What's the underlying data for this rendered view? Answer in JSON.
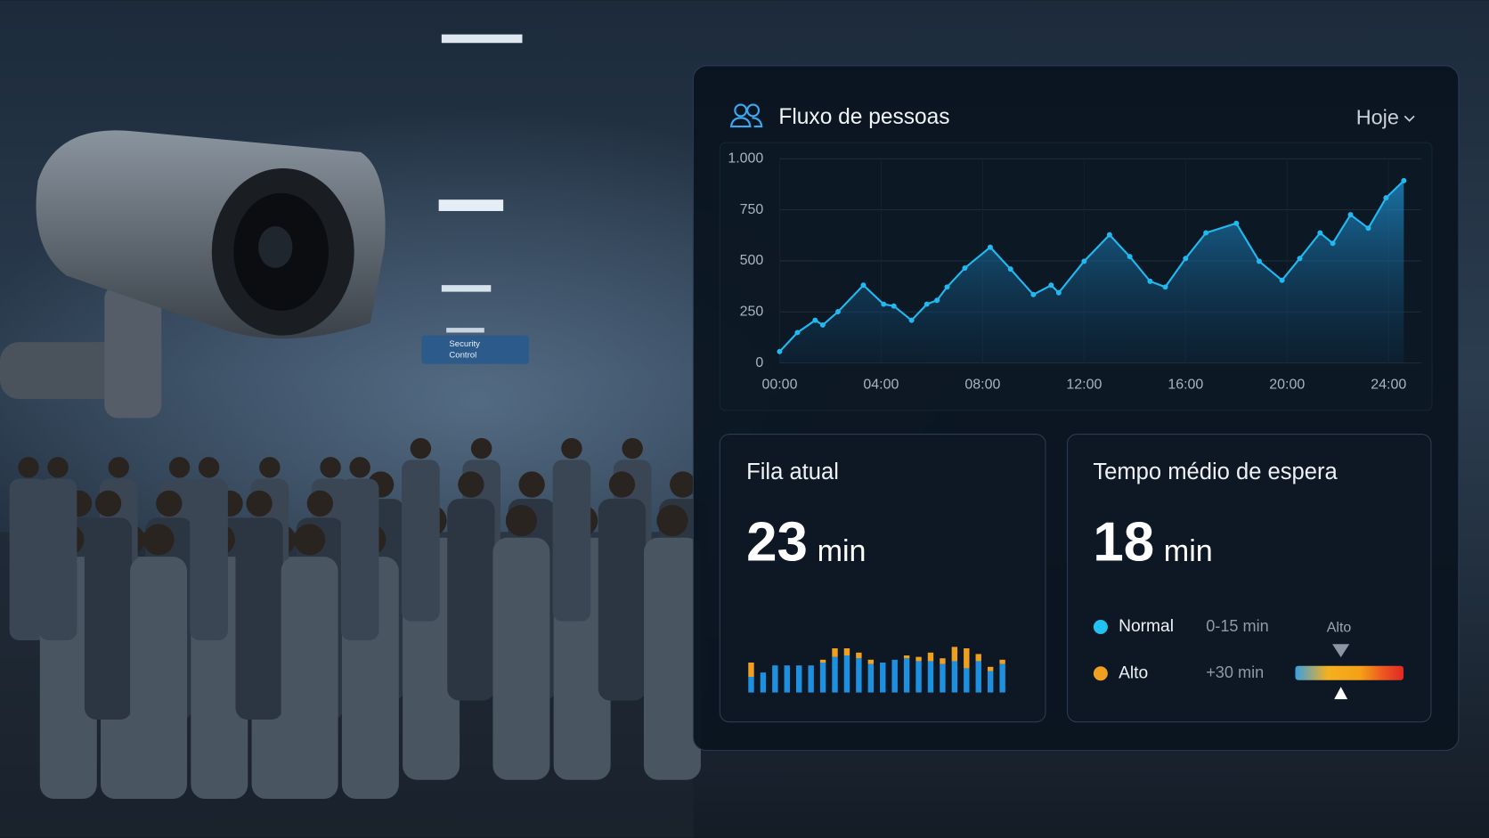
{
  "scene": {
    "sign": [
      "Security",
      "Control"
    ]
  },
  "header": {
    "title": "Fluxo de pessoas",
    "period": "Hoje"
  },
  "chart_data": {
    "type": "area",
    "x": [
      0,
      0.7,
      1.4,
      1.7,
      2.3,
      3.3,
      4.1,
      4.5,
      5.2,
      5.8,
      6.2,
      6.6,
      7.3,
      8.3,
      9.1,
      10.0,
      10.7,
      11.0,
      12.0,
      13.0,
      13.8,
      14.6,
      15.2,
      16.0,
      16.8,
      18.0,
      18.9,
      19.8,
      20.5,
      21.3,
      21.8,
      22.5,
      23.2,
      23.9,
      24.6
    ],
    "values": [
      56,
      149,
      209,
      186,
      251,
      381,
      288,
      279,
      209,
      288,
      307,
      372,
      465,
      567,
      460,
      335,
      381,
      344,
      498,
      628,
      521,
      400,
      372,
      512,
      637,
      684,
      498,
      405,
      512,
      637,
      586,
      726,
      660,
      809,
      893
    ],
    "color": "#22b8f0",
    "xlim": [
      0,
      25.3
    ],
    "ylim": [
      0,
      1000
    ],
    "xticks": [
      {
        "value": 0,
        "label": "00:00"
      },
      {
        "value": 4,
        "label": "04:00"
      },
      {
        "value": 8,
        "label": "08:00"
      },
      {
        "value": 12,
        "label": "12:00"
      },
      {
        "value": 16,
        "label": "16:00"
      },
      {
        "value": 20,
        "label": "20:00"
      },
      {
        "value": 24,
        "label": "24:00"
      }
    ],
    "yticks": [
      0,
      250,
      500,
      750,
      {
        "value": 1000,
        "label": "1.000"
      }
    ],
    "grid": true
  },
  "cards": [
    {
      "title": "Fila atual",
      "value": 23,
      "unit": "min",
      "bars": {
        "series": [
          {
            "color": "#1e90e0",
            "values": [
              22,
              28,
              38,
              38,
              38,
              38,
              42,
              50,
              52,
              48,
              40,
              42,
              46,
              48,
              44,
              44,
              40,
              44,
              34,
              44,
              30,
              40
            ]
          },
          {
            "color": "#f0a020",
            "values": [
              20,
              0,
              0,
              0,
              0,
              0,
              4,
              12,
              10,
              8,
              6,
              0,
              0,
              4,
              6,
              12,
              8,
              20,
              28,
              10,
              6,
              6
            ]
          }
        ]
      }
    },
    {
      "title": "Tempo médio de espera",
      "value": 18,
      "unit": "min",
      "legend": [
        {
          "label": "Normal",
          "range": "0-15 min",
          "color": "#22c3ee"
        },
        {
          "label": "Alto",
          "range": "+30 min",
          "color": "#f0a020"
        }
      ],
      "gauge_label": "Alto"
    }
  ]
}
